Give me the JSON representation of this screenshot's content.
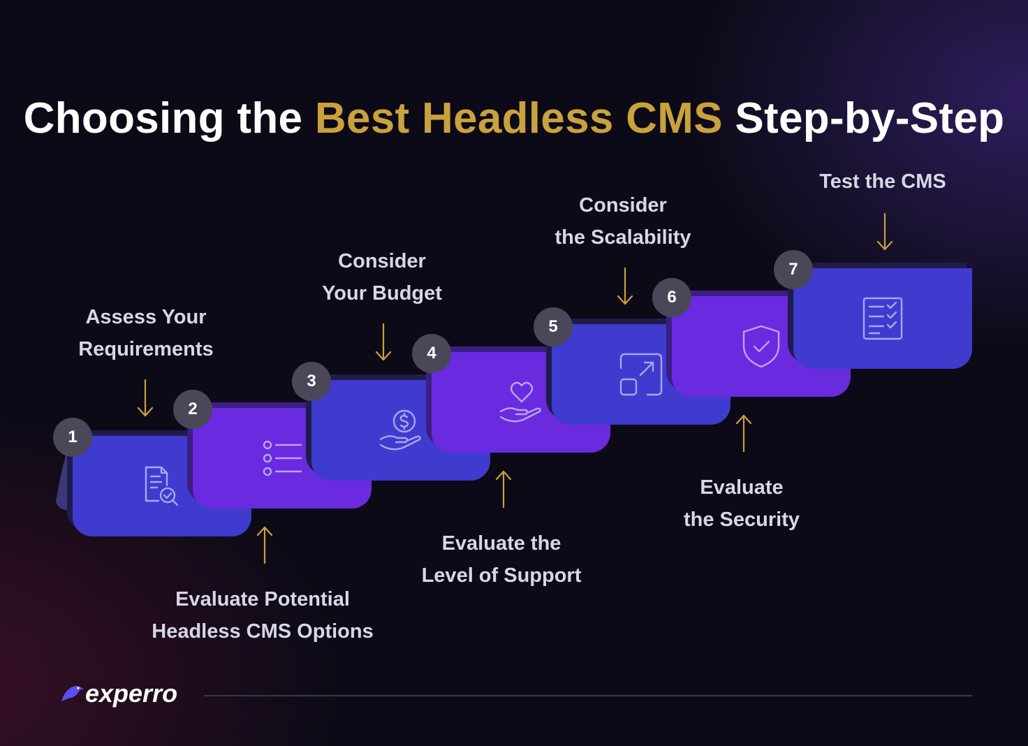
{
  "title": {
    "part1": "Choosing the ",
    "highlight": "Best Headless CMS",
    "part2": " Step-by-Step"
  },
  "colors": {
    "accent_gold": "#c9a23d",
    "card_blue": "#3f3bcf",
    "card_purple": "#6a2ae0",
    "badge": "#4a4858"
  },
  "steps": [
    {
      "number": "1",
      "line1": "Assess Your",
      "line2": "Requirements",
      "icon": "document-search-icon"
    },
    {
      "number": "2",
      "line1": "Evaluate Potential",
      "line2": "Headless CMS Options",
      "icon": "list-icon"
    },
    {
      "number": "3",
      "line1": "Consider",
      "line2": "Your Budget",
      "icon": "hand-dollar-icon"
    },
    {
      "number": "4",
      "line1": "Evaluate the",
      "line2": "Level of Support",
      "icon": "hand-heart-icon"
    },
    {
      "number": "5",
      "line1": "Consider",
      "line2": "the Scalability",
      "icon": "expand-icon"
    },
    {
      "number": "6",
      "line1": "Evaluate",
      "line2": "the Security",
      "icon": "shield-check-icon"
    },
    {
      "number": "7",
      "line1": "Test the CMS",
      "line2": "",
      "icon": "checklist-icon"
    }
  ],
  "brand": {
    "name": "experro",
    "icon": "bird-icon"
  }
}
